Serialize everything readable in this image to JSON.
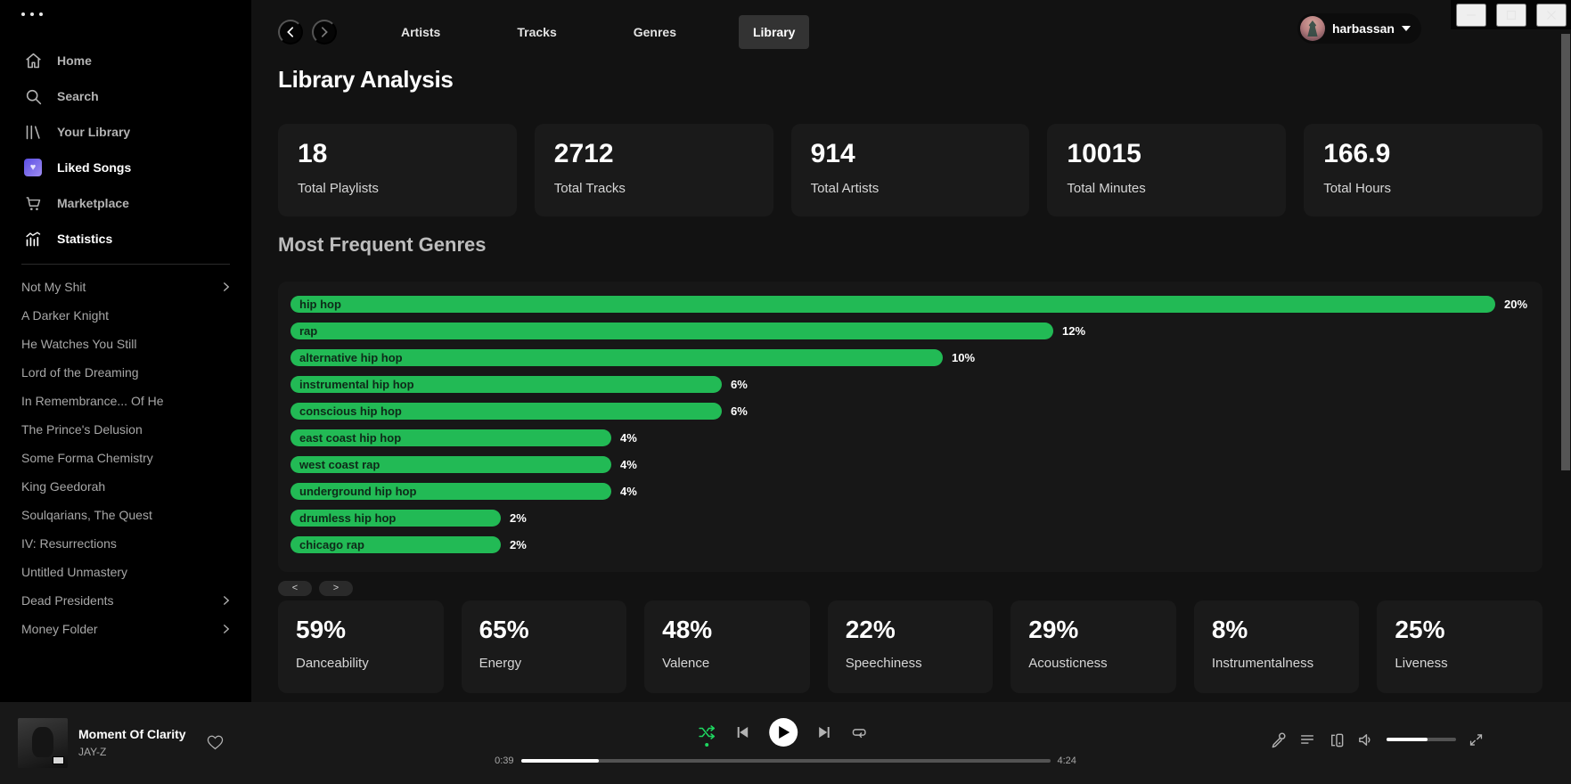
{
  "sidebar": {
    "nav": [
      {
        "label": "Home",
        "icon": "home-icon",
        "active": false
      },
      {
        "label": "Search",
        "icon": "search-icon",
        "active": false
      },
      {
        "label": "Your Library",
        "icon": "your-library-icon",
        "active": false
      },
      {
        "label": "Liked Songs",
        "icon": "liked-songs-icon",
        "active": true
      },
      {
        "label": "Marketplace",
        "icon": "marketplace-icon",
        "active": false
      },
      {
        "label": "Statistics",
        "icon": "statistics-icon",
        "active": true
      }
    ],
    "playlists": [
      {
        "label": "Not My Shit",
        "expandable": true
      },
      {
        "label": "A Darker Knight",
        "expandable": false
      },
      {
        "label": "He Watches You Still",
        "expandable": false
      },
      {
        "label": "Lord of the Dreaming",
        "expandable": false
      },
      {
        "label": "In Remembrance... Of He",
        "expandable": false
      },
      {
        "label": "The Prince's Delusion",
        "expandable": false
      },
      {
        "label": "Some Forma Chemistry",
        "expandable": false
      },
      {
        "label": "King Geedorah",
        "expandable": false
      },
      {
        "label": "Soulqarians, The Quest",
        "expandable": false
      },
      {
        "label": "IV: Resurrections",
        "expandable": false
      },
      {
        "label": "Untitled Unmastery",
        "expandable": false
      },
      {
        "label": "Dead Presidents",
        "expandable": true
      },
      {
        "label": "Money Folder",
        "expandable": true
      }
    ]
  },
  "topnav": {
    "tabs": [
      {
        "label": "Artists",
        "active": false
      },
      {
        "label": "Tracks",
        "active": false
      },
      {
        "label": "Genres",
        "active": false
      },
      {
        "label": "Library",
        "active": true
      }
    ],
    "user": {
      "name": "harbassan"
    }
  },
  "page": {
    "title": "Library Analysis",
    "stats": [
      {
        "value": "18",
        "label": "Total Playlists"
      },
      {
        "value": "2712",
        "label": "Total Tracks"
      },
      {
        "value": "914",
        "label": "Total Artists"
      },
      {
        "value": "10015",
        "label": "Total Minutes"
      },
      {
        "value": "166.9",
        "label": "Total Hours"
      }
    ],
    "genres_title": "Most Frequent Genres",
    "pagination": {
      "prev": "<",
      "next": ">"
    },
    "features": [
      {
        "value": "59%",
        "label": "Danceability"
      },
      {
        "value": "65%",
        "label": "Energy"
      },
      {
        "value": "48%",
        "label": "Valence"
      },
      {
        "value": "22%",
        "label": "Speechiness"
      },
      {
        "value": "29%",
        "label": "Acousticness"
      },
      {
        "value": "8%",
        "label": "Instrumentalness"
      },
      {
        "value": "25%",
        "label": "Liveness"
      }
    ]
  },
  "chart_data": {
    "type": "bar",
    "orientation": "horizontal",
    "title": "Most Frequent Genres",
    "categories": [
      "hip hop",
      "rap",
      "alternative hip hop",
      "instrumental hip hop",
      "conscious hip hop",
      "east coast hip hop",
      "west coast rap",
      "underground hip hop",
      "drumless hip hop",
      "chicago rap"
    ],
    "values": [
      20,
      12,
      10,
      6,
      6,
      4,
      4,
      4,
      2,
      2
    ],
    "unit": "%",
    "bar_color": "#22ba55",
    "legend": "none",
    "grid": false
  },
  "player": {
    "track": {
      "title": "Moment Of Clarity",
      "artist": "JAY-Z"
    },
    "time_current": "0:39",
    "time_total": "4:24",
    "progress_percent": 14.8,
    "volume_percent": 59,
    "shuffle_active": true
  },
  "colors": {
    "accent_green": "#22ba55",
    "shuffle_green": "#1ed760",
    "background": "#121212",
    "card": "#1a1a1a"
  }
}
